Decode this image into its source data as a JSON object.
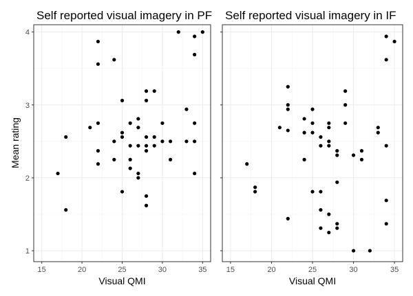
{
  "chart_data": [
    {
      "type": "scatter",
      "title": "Self reported visual imagery in PF",
      "xlabel": "Visual QMI",
      "ylabel": "Mean rating",
      "xlim": [
        14,
        36
      ],
      "ylim": [
        0.85,
        4.1
      ],
      "xticks": [
        15,
        20,
        25,
        30,
        35
      ],
      "yticks": [
        1,
        2,
        3,
        4
      ],
      "grid": true,
      "points": [
        {
          "x": 17,
          "y": 2.06
        },
        {
          "x": 18,
          "y": 1.56
        },
        {
          "x": 18,
          "y": 2.56
        },
        {
          "x": 21,
          "y": 2.69
        },
        {
          "x": 22,
          "y": 3.56
        },
        {
          "x": 22,
          "y": 3.87
        },
        {
          "x": 22,
          "y": 2.75
        },
        {
          "x": 22,
          "y": 2.37
        },
        {
          "x": 22,
          "y": 2.19
        },
        {
          "x": 24,
          "y": 3.62
        },
        {
          "x": 24,
          "y": 2.5
        },
        {
          "x": 24,
          "y": 2.25
        },
        {
          "x": 25,
          "y": 3.06
        },
        {
          "x": 25,
          "y": 2.62
        },
        {
          "x": 25,
          "y": 2.56
        },
        {
          "x": 25,
          "y": 1.81
        },
        {
          "x": 26,
          "y": 2.75
        },
        {
          "x": 26,
          "y": 2.44
        },
        {
          "x": 26,
          "y": 2.25
        },
        {
          "x": 26,
          "y": 2.13
        },
        {
          "x": 27,
          "y": 2.81
        },
        {
          "x": 27,
          "y": 2.69
        },
        {
          "x": 27,
          "y": 2.44
        },
        {
          "x": 27,
          "y": 2.06
        },
        {
          "x": 27,
          "y": 2.0
        },
        {
          "x": 28,
          "y": 3.19
        },
        {
          "x": 28,
          "y": 3.06
        },
        {
          "x": 28,
          "y": 2.56
        },
        {
          "x": 28,
          "y": 2.44
        },
        {
          "x": 28,
          "y": 2.37
        },
        {
          "x": 28,
          "y": 1.75
        },
        {
          "x": 28,
          "y": 1.62
        },
        {
          "x": 29,
          "y": 3.19
        },
        {
          "x": 29,
          "y": 2.56
        },
        {
          "x": 29,
          "y": 2.44
        },
        {
          "x": 30,
          "y": 2.75
        },
        {
          "x": 30,
          "y": 2.5
        },
        {
          "x": 31,
          "y": 2.5
        },
        {
          "x": 31,
          "y": 2.25
        },
        {
          "x": 32,
          "y": 4.0
        },
        {
          "x": 33,
          "y": 2.94
        },
        {
          "x": 33,
          "y": 2.5
        },
        {
          "x": 34,
          "y": 3.94
        },
        {
          "x": 34,
          "y": 3.69
        },
        {
          "x": 34,
          "y": 2.75
        },
        {
          "x": 34,
          "y": 2.5
        },
        {
          "x": 34,
          "y": 2.06
        },
        {
          "x": 35,
          "y": 4.0
        }
      ]
    },
    {
      "type": "scatter",
      "title": "Self reported visual imagery in IF",
      "xlabel": "Visual QMI",
      "ylabel": "Mean rating",
      "xlim": [
        14,
        36
      ],
      "ylim": [
        0.85,
        4.1
      ],
      "xticks": [
        15,
        20,
        25,
        30,
        35
      ],
      "yticks": [
        1,
        2,
        3,
        4
      ],
      "grid": true,
      "points": [
        {
          "x": 17,
          "y": 2.19
        },
        {
          "x": 18,
          "y": 1.87
        },
        {
          "x": 18,
          "y": 1.81
        },
        {
          "x": 21,
          "y": 2.69
        },
        {
          "x": 22,
          "y": 3.25
        },
        {
          "x": 22,
          "y": 3.0
        },
        {
          "x": 22,
          "y": 2.94
        },
        {
          "x": 22,
          "y": 2.65
        },
        {
          "x": 22,
          "y": 1.44
        },
        {
          "x": 24,
          "y": 2.81
        },
        {
          "x": 24,
          "y": 2.62
        },
        {
          "x": 24,
          "y": 2.25
        },
        {
          "x": 25,
          "y": 2.94
        },
        {
          "x": 25,
          "y": 2.75
        },
        {
          "x": 25,
          "y": 2.62
        },
        {
          "x": 25,
          "y": 1.81
        },
        {
          "x": 26,
          "y": 2.56
        },
        {
          "x": 26,
          "y": 2.44
        },
        {
          "x": 26,
          "y": 1.81
        },
        {
          "x": 26,
          "y": 1.56
        },
        {
          "x": 26,
          "y": 1.31
        },
        {
          "x": 27,
          "y": 2.75
        },
        {
          "x": 27,
          "y": 2.69
        },
        {
          "x": 27,
          "y": 2.5
        },
        {
          "x": 27,
          "y": 2.44
        },
        {
          "x": 27,
          "y": 1.5
        },
        {
          "x": 27,
          "y": 1.25
        },
        {
          "x": 28,
          "y": 2.37
        },
        {
          "x": 28,
          "y": 2.31
        },
        {
          "x": 28,
          "y": 1.94
        },
        {
          "x": 28,
          "y": 1.37
        },
        {
          "x": 28,
          "y": 1.31
        },
        {
          "x": 29,
          "y": 3.19
        },
        {
          "x": 29,
          "y": 3.0
        },
        {
          "x": 29,
          "y": 2.75
        },
        {
          "x": 30,
          "y": 2.31
        },
        {
          "x": 30,
          "y": 1.0
        },
        {
          "x": 31,
          "y": 2.37
        },
        {
          "x": 31,
          "y": 2.25
        },
        {
          "x": 32,
          "y": 1.0
        },
        {
          "x": 33,
          "y": 2.69
        },
        {
          "x": 33,
          "y": 2.62
        },
        {
          "x": 34,
          "y": 3.94
        },
        {
          "x": 34,
          "y": 3.62
        },
        {
          "x": 34,
          "y": 2.44
        },
        {
          "x": 34,
          "y": 1.69
        },
        {
          "x": 34,
          "y": 1.37
        },
        {
          "x": 35,
          "y": 3.87
        }
      ]
    }
  ]
}
